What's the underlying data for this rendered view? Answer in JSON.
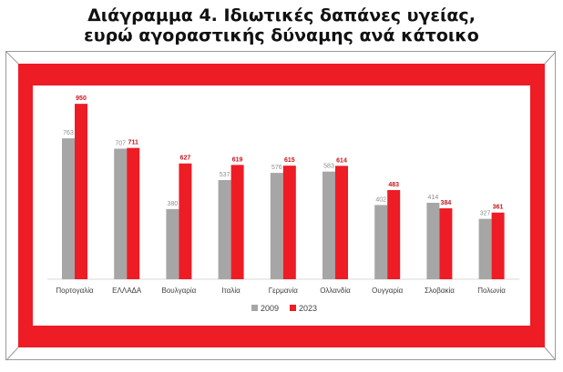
{
  "title_line1": "Διάγραμμα 4. Ιδιωτικές δαπάνες υγείας,",
  "title_line2": "ευρώ αγοραστικής δύναμης ανά κάτοικο",
  "colors": {
    "series_2009": "#a6a6a6",
    "series_2023": "#ee1c25",
    "frame_red": "#ee1c25",
    "label_2009": "#8c8c8c",
    "label_2023": "#c8141c"
  },
  "chart_data": {
    "type": "bar",
    "categories": [
      "Πορτογαλία",
      "ΕΛΛΑΔΑ",
      "Βουλγαρία",
      "Ιταλία",
      "Γερμανία",
      "Ολλανδία",
      "Ουγγαρία",
      "Σλοβακία",
      "Πολωνία"
    ],
    "series": [
      {
        "name": "2009",
        "values": [
          763,
          707,
          380,
          537,
          576,
          583,
          402,
          414,
          327
        ]
      },
      {
        "name": "2023",
        "values": [
          950,
          711,
          627,
          619,
          615,
          614,
          483,
          384,
          361
        ]
      }
    ],
    "ylim": [
      0,
      1000
    ],
    "grid": false,
    "legend": "bottom"
  }
}
